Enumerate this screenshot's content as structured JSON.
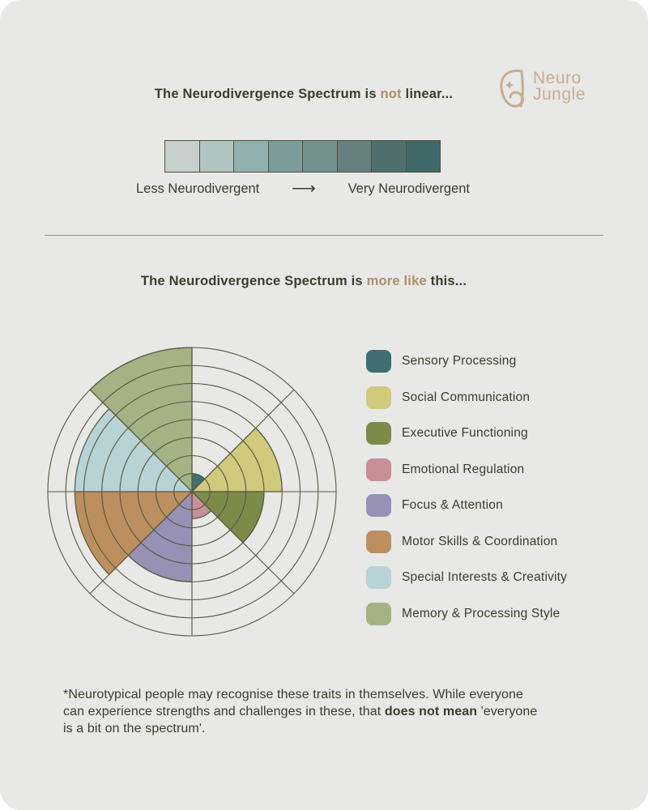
{
  "page": {
    "background_color": "#e8e8e7",
    "text_color": "#3b3d29",
    "accent_color": "#ac9065",
    "grid_color": "#565741"
  },
  "logo": {
    "name_line1": "Neuro",
    "name_line2": "Jungle",
    "color": "#c6ae8d"
  },
  "section_linear": {
    "title_part1": "The Neurodivergence Spectrum is ",
    "title_accent": "not",
    "title_part2": " linear...",
    "bar_colors": [
      "#c7cfcc",
      "#afc5c1",
      "#92b0ad",
      "#7b9c9a",
      "#74918f",
      "#65807e",
      "#4d6f6e",
      "#3f6968"
    ],
    "left_label": "Less Neurodivergent",
    "arrow_glyph": "⟶",
    "right_label": "Very Neurodivergent"
  },
  "section_radial": {
    "title_part1": "The Neurodivergence Spectrum is ",
    "title_accent": "more like",
    "title_part2": " this..."
  },
  "chart_data": {
    "type": "polar-area",
    "description": "Radial wheel with 8 equal 45-degree sectors; each sector is filled outward from the centre over a grid of 8 concentric rings. Values are filled rings out of 8, clockwise from 12 o'clock.",
    "categories": [
      "Sensory Processing",
      "Social Communication",
      "Executive Functioning",
      "Emotional Regulation",
      "Focus & Attention",
      "Motor Skills & Coordination",
      "Special Interests & Creativity",
      "Memory & Processing Style"
    ],
    "values": [
      1,
      5,
      4,
      1.5,
      5,
      6.5,
      6.5,
      8
    ],
    "max": 8,
    "rings": 8,
    "sector_angle_deg": 45,
    "start_angle_deg": 0,
    "direction": "clockwise",
    "colors": [
      "#416e73",
      "#d1c97b",
      "#7d8b49",
      "#c78f96",
      "#9691b5",
      "#bd8f5e",
      "#b7d3d5",
      "#a4b384"
    ],
    "grid_color": "#565741",
    "legend_position": "right"
  },
  "footnote": {
    "line1": "*Neurotypical people may recognise these traits in themselves. While everyone",
    "line2_pre": "can experience strengths and challenges in these, that ",
    "line2_bold": "does not mean",
    "line2_post": " 'everyone",
    "line3": "is a bit on the spectrum'."
  }
}
